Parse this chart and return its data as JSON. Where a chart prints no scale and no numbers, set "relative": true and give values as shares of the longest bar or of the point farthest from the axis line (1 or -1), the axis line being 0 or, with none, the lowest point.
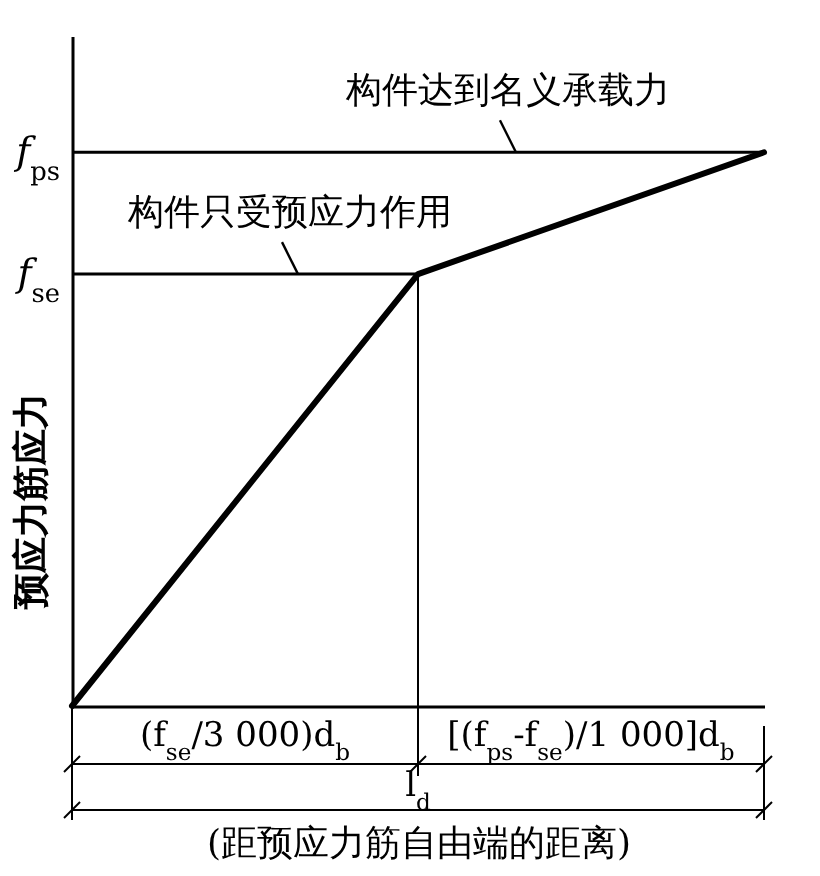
{
  "chart_data": {
    "type": "line",
    "relative": true,
    "categories": [
      null,
      null,
      null
    ],
    "values": [
      0,
      0.78,
      1
    ],
    "color": "#000000",
    "ylabel": "预应力筋应力",
    "xlabel": "(距预应力筋自由端的距离)",
    "ref_lines": [
      {
        "axis": "y",
        "value": 1,
        "label": "f$_{ps}$"
      },
      {
        "axis": "y",
        "value": 0.78,
        "label": "f$_{se}$"
      }
    ],
    "annotations": [
      {
        "text": "构件达到名义承载力",
        "y": 1
      },
      {
        "text": "构件只受预应力作用",
        "y": 0.78
      },
      "(f$_{se}$/3 000)d$_{b}$",
      "[(f$_{ps}$-f$_{se}$)/1 000]d$_{b}$",
      "l$_{d}$"
    ]
  }
}
